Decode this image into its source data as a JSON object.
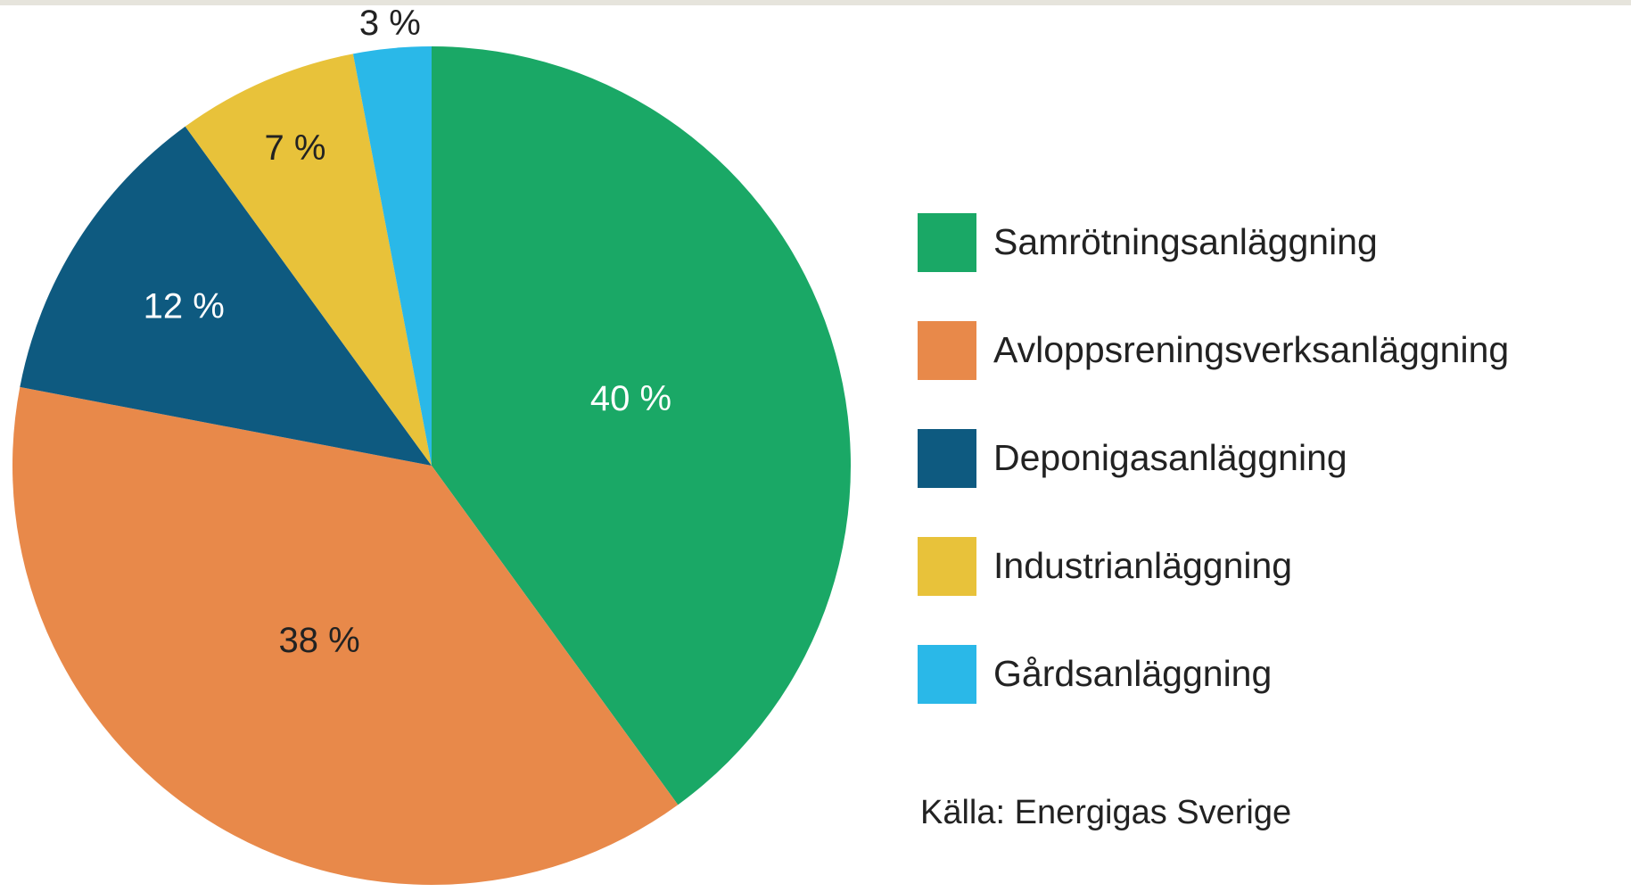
{
  "chart_data": {
    "type": "pie",
    "categories": [
      "Samrötningsanläggning",
      "Avloppsreningsverksanläggning",
      "Deponigasanläggning",
      "Industrianläggning",
      "Gårdsanläggning"
    ],
    "values": [
      40,
      38,
      12,
      7,
      3
    ],
    "value_labels": [
      "40 %",
      "38 %",
      "12 %",
      "7 %",
      "3 %"
    ],
    "colors": [
      "#1aa866",
      "#e8894a",
      "#0e5a80",
      "#e8c23a",
      "#2ab8e8"
    ],
    "legend": "right",
    "source": "Källa: Energigas Sverige"
  }
}
